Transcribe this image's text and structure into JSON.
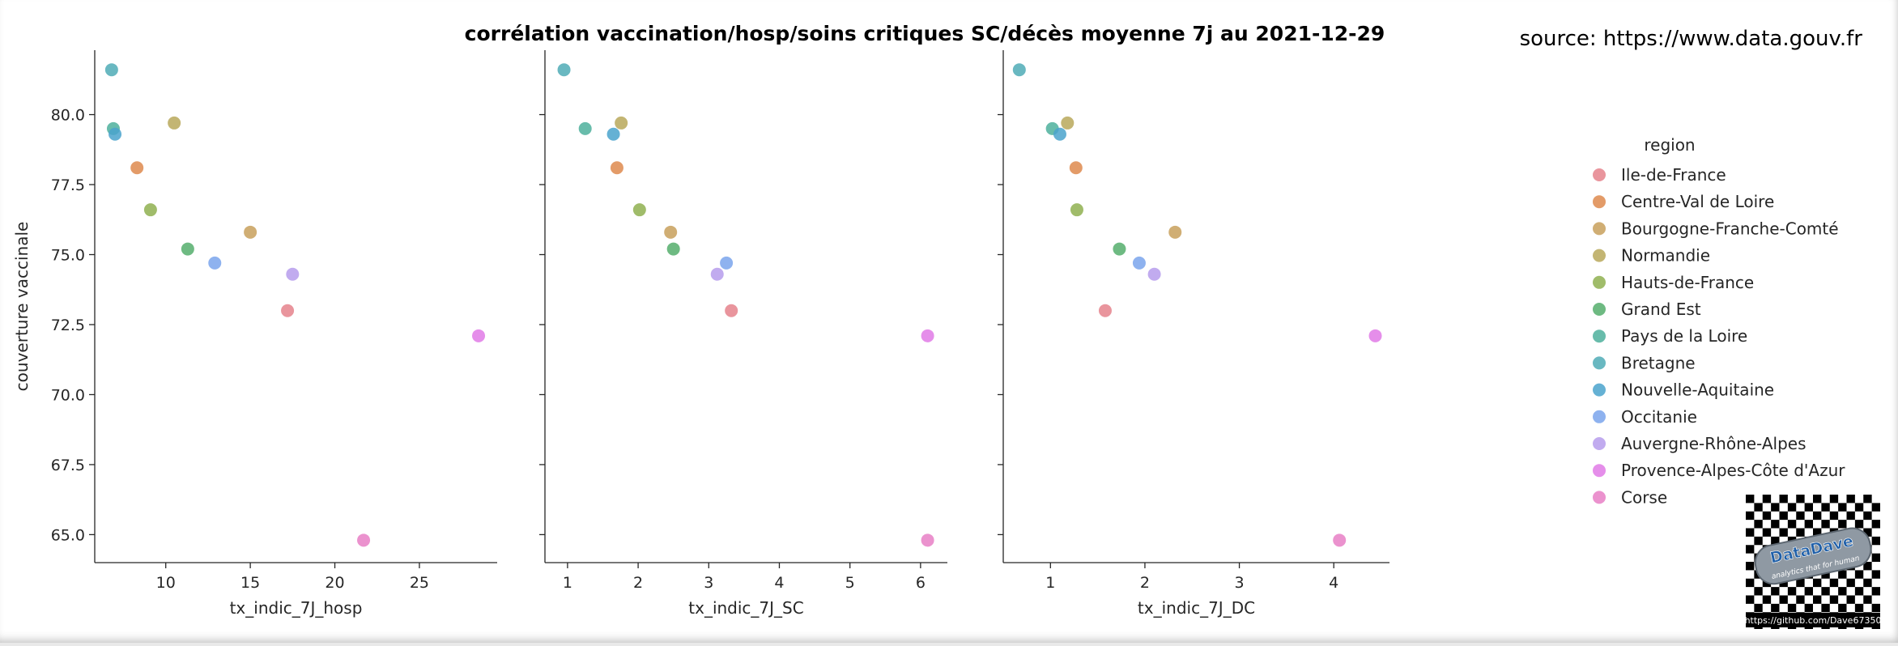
{
  "title": "corrélation vaccination/hosp/soins critiques SC/décès moyenne 7j au 2021-12-29",
  "source": "source: https://www.data.gouv.fr",
  "colors": {
    "Ile-de-France": "#e5828c",
    "Centre-Val de Loire": "#de8a4e",
    "Bourgogne-Franche-Comté": "#c8a05c",
    "Normandie": "#b8a85a",
    "Hauts-de-France": "#8fb050",
    "Grand Est": "#55ae6c",
    "Pays de la Loire": "#4eb09c",
    "Bretagne": "#4fabb6",
    "Nouvelle-Aquitaine": "#4aa3cc",
    "Occitanie": "#7aa4ec",
    "Auvergne-Rhône-Alpes": "#b69cec",
    "Provence-Alpes-Côte d'Azur": "#e07ae6",
    "Corse": "#e77fc6"
  },
  "logo": {
    "text": "DataDave",
    "tagline": "analytics that for human",
    "url": "https://github.com/Dave67350"
  },
  "chart_data": [
    {
      "type": "scatter",
      "xlabel": "tx_indic_7J_hosp",
      "ylabel": "couverture vaccinale",
      "xlim": [
        5.8,
        29.6
      ],
      "ylim": [
        64.0,
        82.3
      ],
      "xticks": [
        10,
        15,
        20,
        25
      ],
      "yticks": [
        65.0,
        67.5,
        70.0,
        72.5,
        75.0,
        77.5,
        80.0
      ],
      "points": [
        {
          "region": "Ile-de-France",
          "x": 17.2,
          "y": 73.0
        },
        {
          "region": "Centre-Val de Loire",
          "x": 8.3,
          "y": 78.1
        },
        {
          "region": "Bourgogne-Franche-Comté",
          "x": 15.0,
          "y": 75.8
        },
        {
          "region": "Normandie",
          "x": 10.5,
          "y": 79.7
        },
        {
          "region": "Hauts-de-France",
          "x": 9.1,
          "y": 76.6
        },
        {
          "region": "Grand Est",
          "x": 11.3,
          "y": 75.2
        },
        {
          "region": "Pays de la Loire",
          "x": 6.9,
          "y": 79.5
        },
        {
          "region": "Bretagne",
          "x": 6.8,
          "y": 81.6
        },
        {
          "region": "Nouvelle-Aquitaine",
          "x": 7.0,
          "y": 79.3
        },
        {
          "region": "Occitanie",
          "x": 12.9,
          "y": 74.7
        },
        {
          "region": "Auvergne-Rhône-Alpes",
          "x": 17.5,
          "y": 74.3
        },
        {
          "region": "Provence-Alpes-Côte d'Azur",
          "x": 28.5,
          "y": 72.1
        },
        {
          "region": "Corse",
          "x": 21.7,
          "y": 64.8
        }
      ]
    },
    {
      "type": "scatter",
      "xlabel": "tx_indic_7J_SC",
      "ylabel": "",
      "xlim": [
        0.68,
        6.38
      ],
      "ylim": [
        64.0,
        82.3
      ],
      "xticks": [
        1,
        2,
        3,
        4,
        5,
        6
      ],
      "yticks": [
        65.0,
        67.5,
        70.0,
        72.5,
        75.0,
        77.5,
        80.0
      ],
      "points": [
        {
          "region": "Ile-de-France",
          "x": 3.32,
          "y": 73.0
        },
        {
          "region": "Centre-Val de Loire",
          "x": 1.7,
          "y": 78.1
        },
        {
          "region": "Bourgogne-Franche-Comté",
          "x": 2.46,
          "y": 75.8
        },
        {
          "region": "Normandie",
          "x": 1.76,
          "y": 79.7
        },
        {
          "region": "Hauts-de-France",
          "x": 2.02,
          "y": 76.6
        },
        {
          "region": "Grand Est",
          "x": 2.5,
          "y": 75.2
        },
        {
          "region": "Pays de la Loire",
          "x": 1.25,
          "y": 79.5
        },
        {
          "region": "Bretagne",
          "x": 0.95,
          "y": 81.6
        },
        {
          "region": "Nouvelle-Aquitaine",
          "x": 1.65,
          "y": 79.3
        },
        {
          "region": "Occitanie",
          "x": 3.25,
          "y": 74.7
        },
        {
          "region": "Auvergne-Rhône-Alpes",
          "x": 3.12,
          "y": 74.3
        },
        {
          "region": "Provence-Alpes-Côte d'Azur",
          "x": 6.1,
          "y": 72.1
        },
        {
          "region": "Corse",
          "x": 6.1,
          "y": 64.8
        }
      ]
    },
    {
      "type": "scatter",
      "xlabel": "tx_indic_7J_DC",
      "ylabel": "",
      "xlim": [
        0.5,
        4.59
      ],
      "ylim": [
        64.0,
        82.3
      ],
      "xticks": [
        1,
        2,
        3,
        4
      ],
      "yticks": [
        65.0,
        67.5,
        70.0,
        72.5,
        75.0,
        77.5,
        80.0
      ],
      "points": [
        {
          "region": "Ile-de-France",
          "x": 1.58,
          "y": 73.0
        },
        {
          "region": "Centre-Val de Loire",
          "x": 1.27,
          "y": 78.1
        },
        {
          "region": "Bourgogne-Franche-Comté",
          "x": 2.32,
          "y": 75.8
        },
        {
          "region": "Normandie",
          "x": 1.18,
          "y": 79.7
        },
        {
          "region": "Hauts-de-France",
          "x": 1.28,
          "y": 76.6
        },
        {
          "region": "Grand Est",
          "x": 1.73,
          "y": 75.2
        },
        {
          "region": "Pays de la Loire",
          "x": 1.02,
          "y": 79.5
        },
        {
          "region": "Bretagne",
          "x": 0.67,
          "y": 81.6
        },
        {
          "region": "Nouvelle-Aquitaine",
          "x": 1.1,
          "y": 79.3
        },
        {
          "region": "Occitanie",
          "x": 1.94,
          "y": 74.7
        },
        {
          "region": "Auvergne-Rhône-Alpes",
          "x": 2.1,
          "y": 74.3
        },
        {
          "region": "Provence-Alpes-Côte d'Azur",
          "x": 4.44,
          "y": 72.1
        },
        {
          "region": "Corse",
          "x": 4.06,
          "y": 64.8
        }
      ]
    }
  ],
  "legend": {
    "title": "region",
    "placement": "right",
    "entries": [
      "Ile-de-France",
      "Centre-Val de Loire",
      "Bourgogne-Franche-Comté",
      "Normandie",
      "Hauts-de-France",
      "Grand Est",
      "Pays de la Loire",
      "Bretagne",
      "Nouvelle-Aquitaine",
      "Occitanie",
      "Auvergne-Rhône-Alpes",
      "Provence-Alpes-Côte d'Azur",
      "Corse"
    ]
  }
}
